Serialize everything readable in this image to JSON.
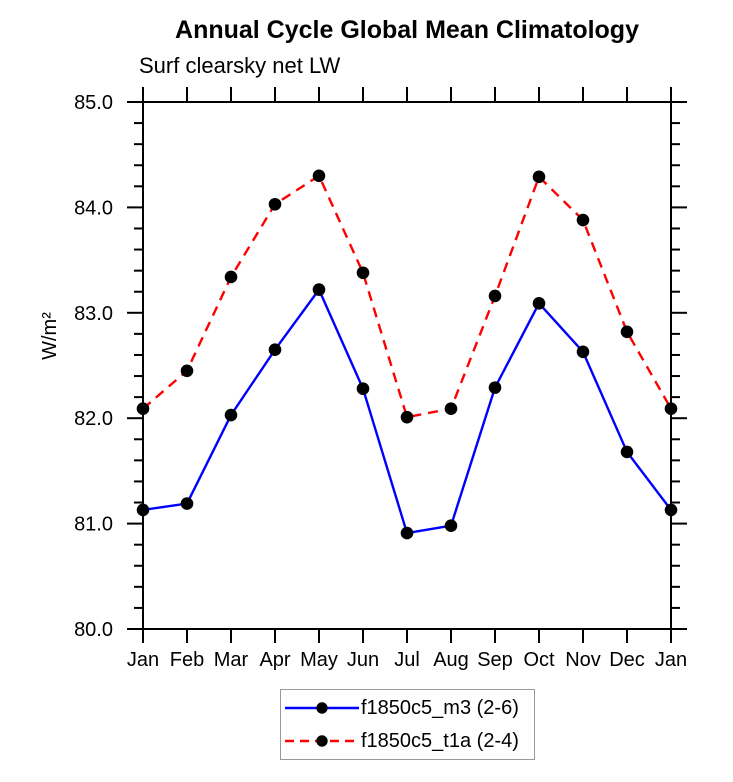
{
  "chart_data": {
    "type": "line",
    "title": "Annual Cycle Global Mean Climatology",
    "subtitle": "Surf clearsky net LW",
    "xlabel": "",
    "ylabel": "W/m²",
    "categories": [
      "Jan",
      "Feb",
      "Mar",
      "Apr",
      "May",
      "Jun",
      "Jul",
      "Aug",
      "Sep",
      "Oct",
      "Nov",
      "Dec",
      "Jan"
    ],
    "series": [
      {
        "name": "f1850c5_m3 (2-6)",
        "color": "#0000ff",
        "line_style": "solid",
        "marker": "filled-circle",
        "marker_color": "#000000",
        "values": [
          81.13,
          81.19,
          82.03,
          82.65,
          83.22,
          82.28,
          80.91,
          80.98,
          82.29,
          83.09,
          82.63,
          81.68,
          81.13
        ]
      },
      {
        "name": "f1850c5_t1a (2-4)",
        "color": "#ff0000",
        "line_style": "dashed",
        "marker": "filled-circle",
        "marker_color": "#000000",
        "values": [
          82.09,
          82.45,
          83.34,
          84.03,
          84.3,
          83.38,
          82.01,
          82.09,
          83.16,
          84.29,
          83.88,
          82.82,
          82.09
        ]
      }
    ],
    "ylim": [
      80.0,
      85.0
    ],
    "ytick_step": 1.0,
    "ytick_minor_step": 0.2,
    "ytick_labels": [
      "80.0",
      "81.0",
      "82.0",
      "83.0",
      "84.0",
      "85.0"
    ],
    "grid": false,
    "legend_position": "bottom-center",
    "axis_color": "#000000",
    "text_color": "#000000",
    "legend_border_color": "#999999"
  }
}
